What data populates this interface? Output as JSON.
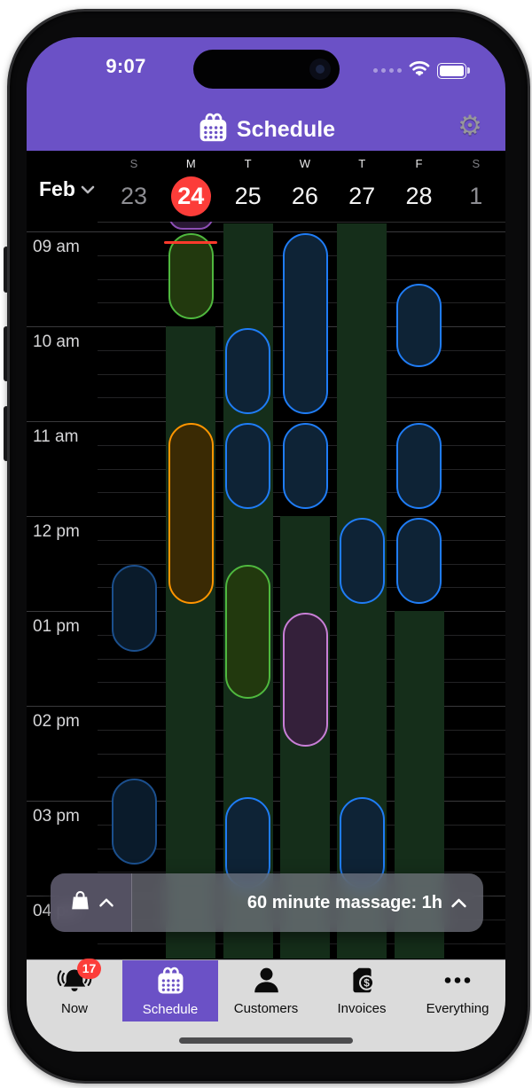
{
  "status_bar": {
    "time": "9:07"
  },
  "header": {
    "title": "Schedule",
    "background": "#6b51c6",
    "icons": {
      "title_icon": "calendar-icon",
      "settings": "gear-icon"
    }
  },
  "date_picker": {
    "month_label": "Feb",
    "selected_color": "#fc3d39",
    "days": [
      {
        "dow": "S",
        "date": "23",
        "muted": true,
        "selected": false
      },
      {
        "dow": "M",
        "date": "24",
        "muted": false,
        "selected": true
      },
      {
        "dow": "T",
        "date": "25",
        "muted": false,
        "selected": false
      },
      {
        "dow": "W",
        "date": "26",
        "muted": false,
        "selected": false
      },
      {
        "dow": "T",
        "date": "27",
        "muted": false,
        "selected": false
      },
      {
        "dow": "F",
        "date": "28",
        "muted": false,
        "selected": false
      },
      {
        "dow": "S",
        "date": "1",
        "muted": true,
        "selected": false
      }
    ]
  },
  "schedule": {
    "hours": [
      {
        "time": "09:00",
        "label": "09 am"
      },
      {
        "time": "10:00",
        "label": "10 am"
      },
      {
        "time": "11:00",
        "label": "11 am"
      },
      {
        "time": "12:00",
        "label": "12 pm"
      },
      {
        "time": "13:00",
        "label": "01 pm"
      },
      {
        "time": "14:00",
        "label": "02 pm"
      },
      {
        "time": "15:00",
        "label": "03 pm"
      },
      {
        "time": "16:00",
        "label": "04 pm"
      }
    ],
    "now_line": {
      "day": 1,
      "time": "09:07",
      "color": "#ff3a2c"
    },
    "availability_color": "#152e1a",
    "availability": [
      {
        "day": 1,
        "start": "10:00",
        "end": "16:40"
      },
      {
        "day": 2,
        "start": "08:55",
        "end": "16:40"
      },
      {
        "day": 3,
        "start": "12:00",
        "end": "16:40"
      },
      {
        "day": 4,
        "start": "08:55",
        "end": "16:40"
      },
      {
        "day": 5,
        "start": "13:00",
        "end": "16:40"
      }
    ],
    "events": [
      {
        "day": 1,
        "start": "08:40",
        "end": "09:00",
        "color": "violetDim"
      },
      {
        "day": 1,
        "start": "09:00",
        "end": "09:57",
        "color": "green"
      },
      {
        "day": 3,
        "start": "09:00",
        "end": "10:57",
        "color": "blue"
      },
      {
        "day": 5,
        "start": "09:32",
        "end": "10:27",
        "color": "blue"
      },
      {
        "day": 2,
        "start": "10:00",
        "end": "10:57",
        "color": "blue"
      },
      {
        "day": 1,
        "start": "11:00",
        "end": "12:57",
        "color": "orange"
      },
      {
        "day": 2,
        "start": "11:00",
        "end": "11:57",
        "color": "blue"
      },
      {
        "day": 3,
        "start": "11:00",
        "end": "11:57",
        "color": "blue"
      },
      {
        "day": 5,
        "start": "11:00",
        "end": "11:57",
        "color": "blue"
      },
      {
        "day": 4,
        "start": "12:00",
        "end": "12:57",
        "color": "blue"
      },
      {
        "day": 5,
        "start": "12:00",
        "end": "12:57",
        "color": "blue"
      },
      {
        "day": 0,
        "start": "12:30",
        "end": "13:27",
        "color": "blueDim"
      },
      {
        "day": 2,
        "start": "12:30",
        "end": "13:57",
        "color": "green"
      },
      {
        "day": 3,
        "start": "13:00",
        "end": "14:27",
        "color": "violet"
      },
      {
        "day": 0,
        "start": "14:45",
        "end": "15:42",
        "color": "blueDim"
      },
      {
        "day": 2,
        "start": "14:57",
        "end": "15:57",
        "color": "blue"
      },
      {
        "day": 4,
        "start": "14:57",
        "end": "15:57",
        "color": "blue"
      }
    ]
  },
  "palette": {
    "blue": {
      "border": "#1f7cf5",
      "fill": "#0e2336"
    },
    "blueDim": {
      "border": "#1b4f8d",
      "fill": "#0a1b2b"
    },
    "green": {
      "border": "#4fb83e",
      "fill": "#22390e"
    },
    "orange": {
      "border": "#ff9500",
      "fill": "#3a2a04"
    },
    "violet": {
      "border": "#c87fd6",
      "fill": "#34203a"
    },
    "violetDim": {
      "border": "#8d4fb5",
      "fill": "#2a1835"
    }
  },
  "cart_bar": {
    "label": "60 minute massage: 1h",
    "icons": {
      "left": "bag-icon",
      "expand": "chevron-up-icon"
    }
  },
  "tab_bar": {
    "selected_color": "#6b51c6",
    "items": [
      {
        "key": "now",
        "label": "Now",
        "badge": "17",
        "selected": false,
        "icon": "bell-icon"
      },
      {
        "key": "schedule",
        "label": "Schedule",
        "badge": null,
        "selected": true,
        "icon": "calendar-icon"
      },
      {
        "key": "customers",
        "label": "Customers",
        "badge": null,
        "selected": false,
        "icon": "person-icon"
      },
      {
        "key": "invoices",
        "label": "Invoices",
        "badge": null,
        "selected": false,
        "icon": "invoice-dollar-icon"
      },
      {
        "key": "everything",
        "label": "Everything",
        "badge": null,
        "selected": false,
        "icon": "ellipsis-icon"
      }
    ]
  }
}
